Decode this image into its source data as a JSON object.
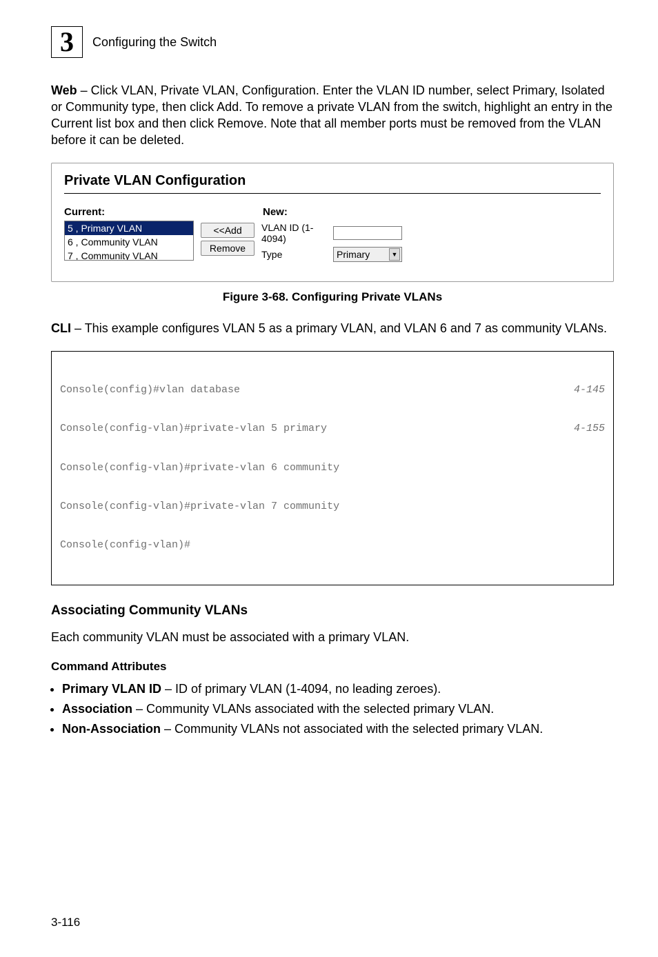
{
  "header": {
    "chapter_number": "3",
    "title": "Configuring the Switch"
  },
  "intro": {
    "lead": "Web",
    "text": " – Click VLAN, Private VLAN, Configuration. Enter the VLAN ID number, select Primary, Isolated or Community type, then click Add. To remove a private VLAN from the switch, highlight an entry in the Current list box and then click Remove. Note that all member ports must be removed from the VLAN before it can be deleted."
  },
  "panel": {
    "title": "Private VLAN Configuration",
    "current_label": "Current:",
    "new_label": "New:",
    "list_items": [
      "5 , Primary VLAN",
      "6 , Community VLAN",
      "7 , Community VLAN"
    ],
    "selected_index": 0,
    "btn_add": "<<Add",
    "btn_remove": "Remove",
    "field_vlan_id": "VLAN ID (1-4094)",
    "field_type": "Type",
    "type_value": "Primary"
  },
  "figure_caption": "Figure 3-68.  Configuring Private VLANs",
  "cli": {
    "lead": "CLI",
    "text": " – This example configures VLAN 5 as a primary VLAN, and VLAN 6 and 7 as community VLANs."
  },
  "code": {
    "lines": [
      {
        "t": "Console(config)#vlan database",
        "r": "4-145"
      },
      {
        "t": "Console(config-vlan)#private-vlan 5 primary",
        "r": "4-155"
      },
      {
        "t": "Console(config-vlan)#private-vlan 6 community",
        "r": ""
      },
      {
        "t": "Console(config-vlan)#private-vlan 7 community",
        "r": ""
      },
      {
        "t": "Console(config-vlan)#",
        "r": ""
      }
    ]
  },
  "section": {
    "h3": "Associating Community VLANs",
    "p": "Each community VLAN must be associated with a primary VLAN.",
    "h4": "Command Attributes",
    "bullets": [
      {
        "b": "Primary VLAN ID",
        "t": " – ID of primary VLAN (1-4094, no leading zeroes)."
      },
      {
        "b": "Association",
        "t": " – Community VLANs associated with the selected primary VLAN."
      },
      {
        "b": "Non-Association",
        "t": " – Community VLANs not associated with the selected primary VLAN."
      }
    ]
  },
  "footer": "3-116"
}
